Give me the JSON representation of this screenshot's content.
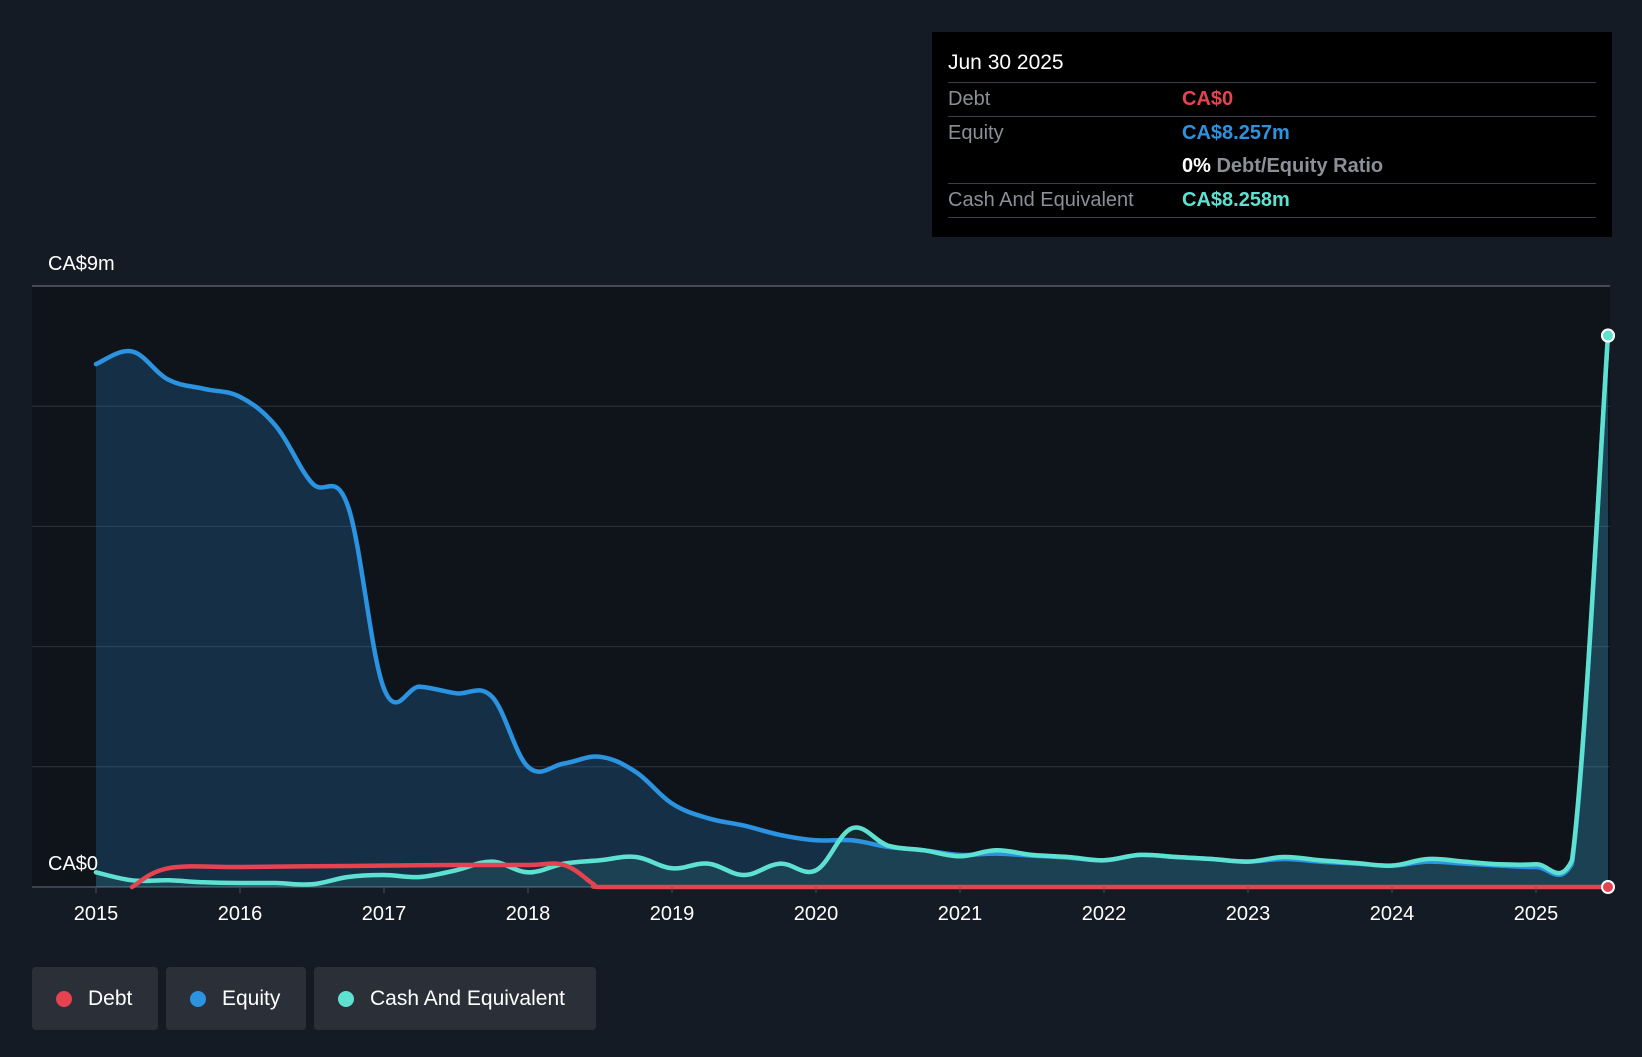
{
  "colors": {
    "background": "#151b24",
    "plot_background": "#0f141b",
    "debt": "#e5434f",
    "equity": "#2b93e0",
    "cash": "#5fe1d1",
    "grid": "#2c333d"
  },
  "tooltip": {
    "date": "Jun 30 2025",
    "debt_label": "Debt",
    "debt_value": "CA$0",
    "equity_label": "Equity",
    "equity_value": "CA$8.257m",
    "ratio_pct": "0%",
    "ratio_label": "Debt/Equity Ratio",
    "cash_label": "Cash And Equivalent",
    "cash_value": "CA$8.258m"
  },
  "legend": {
    "debt": "Debt",
    "equity": "Equity",
    "cash": "Cash And Equivalent"
  },
  "chart_data": {
    "type": "line",
    "title": "",
    "xlabel": "",
    "ylabel": "",
    "y_top_label": "CA$9m",
    "y_bottom_label": "CA$0",
    "ylim": [
      0,
      9
    ],
    "xlim": [
      2015,
      2025.5
    ],
    "x_ticks": [
      "2015",
      "2016",
      "2017",
      "2018",
      "2019",
      "2020",
      "2021",
      "2022",
      "2023",
      "2024",
      "2025"
    ],
    "grid": true,
    "series": [
      {
        "name": "Equity",
        "color": "#2b93e0",
        "filled": true,
        "points": [
          [
            2015.0,
            7.83
          ],
          [
            2015.25,
            8.02
          ],
          [
            2015.5,
            7.6
          ],
          [
            2015.75,
            7.46
          ],
          [
            2016.0,
            7.34
          ],
          [
            2016.25,
            6.9
          ],
          [
            2016.5,
            6.05
          ],
          [
            2016.75,
            5.7
          ],
          [
            2017.0,
            2.97
          ],
          [
            2017.25,
            3.0
          ],
          [
            2017.5,
            2.9
          ],
          [
            2017.75,
            2.85
          ],
          [
            2018.0,
            1.8
          ],
          [
            2018.25,
            1.85
          ],
          [
            2018.5,
            1.95
          ],
          [
            2018.75,
            1.72
          ],
          [
            2019.0,
            1.25
          ],
          [
            2019.25,
            1.03
          ],
          [
            2019.5,
            0.92
          ],
          [
            2019.75,
            0.78
          ],
          [
            2020.0,
            0.7
          ],
          [
            2020.25,
            0.7
          ],
          [
            2020.5,
            0.6
          ],
          [
            2020.75,
            0.55
          ],
          [
            2021.0,
            0.48
          ],
          [
            2021.25,
            0.5
          ],
          [
            2021.5,
            0.47
          ],
          [
            2021.75,
            0.44
          ],
          [
            2022.0,
            0.4
          ],
          [
            2022.25,
            0.48
          ],
          [
            2022.5,
            0.45
          ],
          [
            2022.75,
            0.42
          ],
          [
            2023.0,
            0.38
          ],
          [
            2023.25,
            0.42
          ],
          [
            2023.5,
            0.38
          ],
          [
            2023.75,
            0.35
          ],
          [
            2024.0,
            0.32
          ],
          [
            2024.25,
            0.38
          ],
          [
            2024.5,
            0.35
          ],
          [
            2024.75,
            0.32
          ],
          [
            2025.0,
            0.3
          ],
          [
            2025.25,
            0.35
          ],
          [
            2025.5,
            8.257
          ]
        ]
      },
      {
        "name": "Cash And Equivalent",
        "color": "#5fe1d1",
        "filled": true,
        "points": [
          [
            2015.0,
            0.22
          ],
          [
            2015.25,
            0.1
          ],
          [
            2015.5,
            0.1
          ],
          [
            2015.75,
            0.07
          ],
          [
            2016.0,
            0.06
          ],
          [
            2016.25,
            0.06
          ],
          [
            2016.5,
            0.04
          ],
          [
            2016.75,
            0.15
          ],
          [
            2017.0,
            0.18
          ],
          [
            2017.25,
            0.15
          ],
          [
            2017.5,
            0.25
          ],
          [
            2017.75,
            0.38
          ],
          [
            2018.0,
            0.22
          ],
          [
            2018.25,
            0.35
          ],
          [
            2018.5,
            0.4
          ],
          [
            2018.75,
            0.45
          ],
          [
            2019.0,
            0.28
          ],
          [
            2019.25,
            0.35
          ],
          [
            2019.5,
            0.18
          ],
          [
            2019.75,
            0.35
          ],
          [
            2020.0,
            0.25
          ],
          [
            2020.25,
            0.88
          ],
          [
            2020.5,
            0.62
          ],
          [
            2020.75,
            0.55
          ],
          [
            2021.0,
            0.46
          ],
          [
            2021.25,
            0.55
          ],
          [
            2021.5,
            0.48
          ],
          [
            2021.75,
            0.45
          ],
          [
            2022.0,
            0.4
          ],
          [
            2022.25,
            0.48
          ],
          [
            2022.5,
            0.45
          ],
          [
            2022.75,
            0.42
          ],
          [
            2023.0,
            0.38
          ],
          [
            2023.25,
            0.45
          ],
          [
            2023.5,
            0.4
          ],
          [
            2023.75,
            0.36
          ],
          [
            2024.0,
            0.32
          ],
          [
            2024.25,
            0.42
          ],
          [
            2024.5,
            0.38
          ],
          [
            2024.75,
            0.34
          ],
          [
            2025.0,
            0.34
          ],
          [
            2025.25,
            0.4
          ],
          [
            2025.5,
            8.258
          ]
        ]
      },
      {
        "name": "Debt",
        "color": "#e5434f",
        "filled": false,
        "points": [
          [
            2015.25,
            0.0
          ],
          [
            2015.5,
            0.28
          ],
          [
            2016.0,
            0.3
          ],
          [
            2016.5,
            0.31
          ],
          [
            2017.0,
            0.32
          ],
          [
            2017.5,
            0.33
          ],
          [
            2018.0,
            0.33
          ],
          [
            2018.25,
            0.33
          ],
          [
            2018.45,
            0.05
          ],
          [
            2018.5,
            0.0
          ],
          [
            2019.0,
            0.0
          ],
          [
            2020.0,
            0.0
          ],
          [
            2021.0,
            0.0
          ],
          [
            2022.0,
            0.0
          ],
          [
            2023.0,
            0.0
          ],
          [
            2024.0,
            0.0
          ],
          [
            2025.0,
            0.0
          ],
          [
            2025.5,
            0.0
          ]
        ]
      }
    ]
  }
}
